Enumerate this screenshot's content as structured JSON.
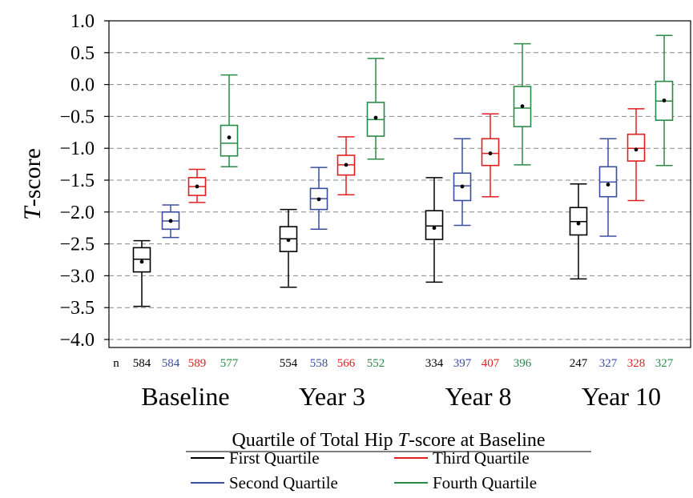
{
  "chart_data": {
    "type": "box",
    "ylabel": "T-score",
    "ylim": [
      -4.0,
      1.0
    ],
    "yticks": [
      "1.0",
      "0.5",
      "0.0",
      "−0.5",
      "−1.0",
      "−1.5",
      "−2.0",
      "−2.5",
      "−3.0",
      "−3.5",
      "−4.0"
    ],
    "ytick_values": [
      1.0,
      0.5,
      0.0,
      -0.5,
      -1.0,
      -1.5,
      -2.0,
      -2.5,
      -3.0,
      -3.5,
      -4.0
    ],
    "grid": "horizontal dashed",
    "n_label": "n",
    "groups": [
      "Baseline",
      "Year 3",
      "Year 8",
      "Year 10"
    ],
    "subtitle": "Quartile of Total Hip T-score at Baseline",
    "subtitle_parts": [
      "Quartile of Total Hip ",
      "T",
      "-score at Baseline"
    ],
    "series": [
      {
        "name": "First Quartile",
        "color": "#000000",
        "n": [
          "584",
          "554",
          "334",
          "247"
        ],
        "boxes": [
          {
            "min": -3.48,
            "q1": -2.94,
            "median": -2.74,
            "q3": -2.56,
            "max": -2.45,
            "mean": -2.78
          },
          {
            "min": -3.18,
            "q1": -2.62,
            "median": -2.42,
            "q3": -2.23,
            "max": -1.96,
            "mean": -2.44
          },
          {
            "min": -3.1,
            "q1": -2.43,
            "median": -2.22,
            "q3": -1.98,
            "max": -1.46,
            "mean": -2.25
          },
          {
            "min": -3.05,
            "q1": -2.36,
            "median": -2.15,
            "q3": -1.93,
            "max": -1.56,
            "mean": -2.18
          }
        ]
      },
      {
        "name": "Second Quartile",
        "color": "#3a4ea0",
        "n": [
          "584",
          "558",
          "397",
          "327"
        ],
        "boxes": [
          {
            "min": -2.4,
            "q1": -2.27,
            "median": -2.14,
            "q3": -2.0,
            "max": -1.89,
            "mean": -2.14
          },
          {
            "min": -2.27,
            "q1": -1.96,
            "median": -1.79,
            "q3": -1.63,
            "max": -1.3,
            "mean": -1.8
          },
          {
            "min": -2.21,
            "q1": -1.82,
            "median": -1.59,
            "q3": -1.39,
            "max": -0.85,
            "mean": -1.6
          },
          {
            "min": -2.38,
            "q1": -1.76,
            "median": -1.53,
            "q3": -1.29,
            "max": -0.85,
            "mean": -1.57
          }
        ]
      },
      {
        "name": "Third Quartile",
        "color": "#e02020",
        "n": [
          "589",
          "566",
          "407",
          "328"
        ],
        "boxes": [
          {
            "min": -1.85,
            "q1": -1.74,
            "median": -1.6,
            "q3": -1.46,
            "max": -1.33,
            "mean": -1.6
          },
          {
            "min": -1.73,
            "q1": -1.42,
            "median": -1.26,
            "q3": -1.11,
            "max": -0.82,
            "mean": -1.26
          },
          {
            "min": -1.76,
            "q1": -1.27,
            "median": -1.08,
            "q3": -0.85,
            "max": -0.46,
            "mean": -1.08
          },
          {
            "min": -1.82,
            "q1": -1.2,
            "median": -1.0,
            "q3": -0.78,
            "max": -0.38,
            "mean": -1.02
          }
        ]
      },
      {
        "name": "Fourth Quartile",
        "color": "#2a8a48",
        "n": [
          "577",
          "552",
          "396",
          "327"
        ],
        "boxes": [
          {
            "min": -1.29,
            "q1": -1.12,
            "median": -0.92,
            "q3": -0.64,
            "max": 0.15,
            "mean": -0.83
          },
          {
            "min": -1.17,
            "q1": -0.81,
            "median": -0.55,
            "q3": -0.28,
            "max": 0.41,
            "mean": -0.52
          },
          {
            "min": -1.26,
            "q1": -0.66,
            "median": -0.37,
            "q3": -0.03,
            "max": 0.64,
            "mean": -0.34
          },
          {
            "min": -1.27,
            "q1": -0.56,
            "median": -0.26,
            "q3": 0.05,
            "max": 0.77,
            "mean": -0.25
          }
        ]
      }
    ]
  }
}
